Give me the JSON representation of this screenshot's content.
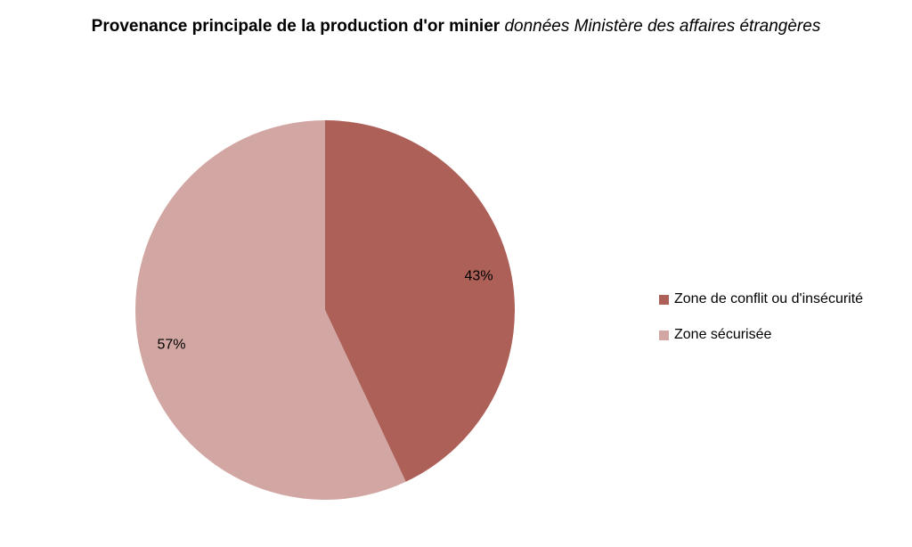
{
  "chart_data": {
    "type": "pie",
    "title": "Provenance principale de la production d'or minier",
    "subtitle": "données Ministère des affaires étrangères",
    "categories": [
      "Zone de conflit ou d'insécurité",
      "Zone sécurisée"
    ],
    "values": [
      43,
      57
    ],
    "value_labels": [
      "43%",
      "57%"
    ],
    "colors": [
      "#ad6057",
      "#d2a7a3"
    ],
    "legend_position": "right"
  }
}
